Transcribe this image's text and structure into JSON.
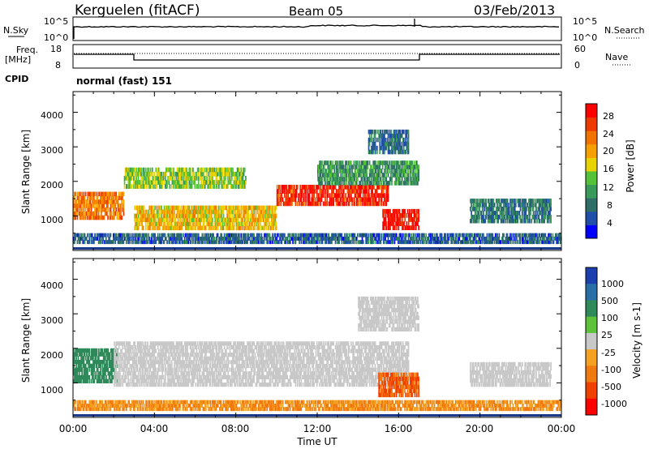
{
  "header": {
    "station": "Kerguelen (fitACF)",
    "beam": "Beam 05",
    "date": "03/Feb/2013"
  },
  "noise_panel": {
    "left_label": "N.Sky",
    "left_ticks": [
      "10^5",
      "10^0"
    ],
    "right_ticks": [
      "10^5",
      "10^0"
    ],
    "right_label": "N.Search"
  },
  "freq_panel": {
    "left_label_1": "Freq.",
    "left_label_2": "[MHz]",
    "left_ticks": [
      "18",
      "8"
    ],
    "right_ticks": [
      "60",
      "0"
    ],
    "right_label": "Nave",
    "cpid_label": "CPID",
    "cpid_value": "normal (fast) 151"
  },
  "colors": {
    "power": [
      "#0000ff",
      "#1f4fa8",
      "#2e6e66",
      "#3a9a5a",
      "#55c23a",
      "#e8d200",
      "#f6a000",
      "#f27200",
      "#ee3a00",
      "#ff0000"
    ],
    "velocity": [
      "#1c3fb0",
      "#2a6ea8",
      "#2f8a5a",
      "#5cc23a",
      "#c8c8c8",
      "#f4a020",
      "#f07a10",
      "#f04000",
      "#ff0000"
    ],
    "ground_scatter": "#bdbdbd"
  },
  "chart_data": [
    {
      "type": "heatmap",
      "name": "power",
      "ylabel": "Slant Range [km]",
      "xlabel": "Time UT",
      "x_ticks": [
        "00:00",
        "04:00",
        "08:00",
        "12:00",
        "16:00",
        "20:00",
        "00:00"
      ],
      "y_ticks": [
        "1000",
        "2000",
        "3000",
        "4000"
      ],
      "ylim": [
        0,
        4600
      ],
      "xlim_hours": [
        0,
        24
      ],
      "colorbar": {
        "label": "Power [dB]",
        "ticks": [
          "4",
          "8",
          "12",
          "16",
          "20",
          "24",
          "28"
        ],
        "range": [
          0,
          30
        ]
      },
      "regions": [
        {
          "t0": 0.0,
          "t1": 2.5,
          "r0": 900,
          "r1": 1700,
          "value": 22
        },
        {
          "t0": 2.5,
          "t1": 8.5,
          "r0": 1800,
          "r1": 2400,
          "value": 14
        },
        {
          "t0": 3.0,
          "t1": 10.0,
          "r0": 600,
          "r1": 1300,
          "value": 18
        },
        {
          "t0": 10.0,
          "t1": 15.5,
          "r0": 1300,
          "r1": 1900,
          "value": 27
        },
        {
          "t0": 12.0,
          "t1": 17.0,
          "r0": 1900,
          "r1": 2600,
          "value": 10
        },
        {
          "t0": 14.5,
          "t1": 16.5,
          "r0": 2800,
          "r1": 3500,
          "value": 7
        },
        {
          "t0": 15.2,
          "t1": 17.0,
          "r0": 600,
          "r1": 1200,
          "value": 28
        },
        {
          "t0": 0.0,
          "t1": 24.0,
          "r0": 200,
          "r1": 500,
          "value": 6
        },
        {
          "t0": 19.5,
          "t1": 23.5,
          "r0": 800,
          "r1": 1500,
          "value": 8
        }
      ]
    },
    {
      "type": "heatmap",
      "name": "velocity",
      "ylabel": "Slant Range [km]",
      "xlabel": "Time UT",
      "x_ticks": [
        "00:00",
        "04:00",
        "08:00",
        "12:00",
        "16:00",
        "20:00",
        "00:00"
      ],
      "y_ticks": [
        "1000",
        "2000",
        "3000",
        "4000"
      ],
      "ylim": [
        0,
        4600
      ],
      "xlim_hours": [
        0,
        24
      ],
      "colorbar": {
        "label": "Velocity [m s-1]",
        "ticks": [
          "1000",
          "500",
          "100",
          "25",
          "-25",
          "-100",
          "-500",
          "-1000"
        ]
      },
      "regions": [
        {
          "t0": 0.0,
          "t1": 2.2,
          "r0": 1000,
          "r1": 2000,
          "value": 200
        },
        {
          "t0": 2.0,
          "t1": 16.5,
          "r0": 900,
          "r1": 2200,
          "value": 0
        },
        {
          "t0": 14.0,
          "t1": 17.0,
          "r0": 2500,
          "r1": 3500,
          "value": 0
        },
        {
          "t0": 15.0,
          "t1": 17.0,
          "r0": 600,
          "r1": 1300,
          "value": -300
        },
        {
          "t0": 0.0,
          "t1": 24.0,
          "r0": 200,
          "r1": 500,
          "value": -60
        },
        {
          "t0": 19.5,
          "t1": 23.5,
          "r0": 900,
          "r1": 1600,
          "value": 0
        }
      ]
    }
  ]
}
